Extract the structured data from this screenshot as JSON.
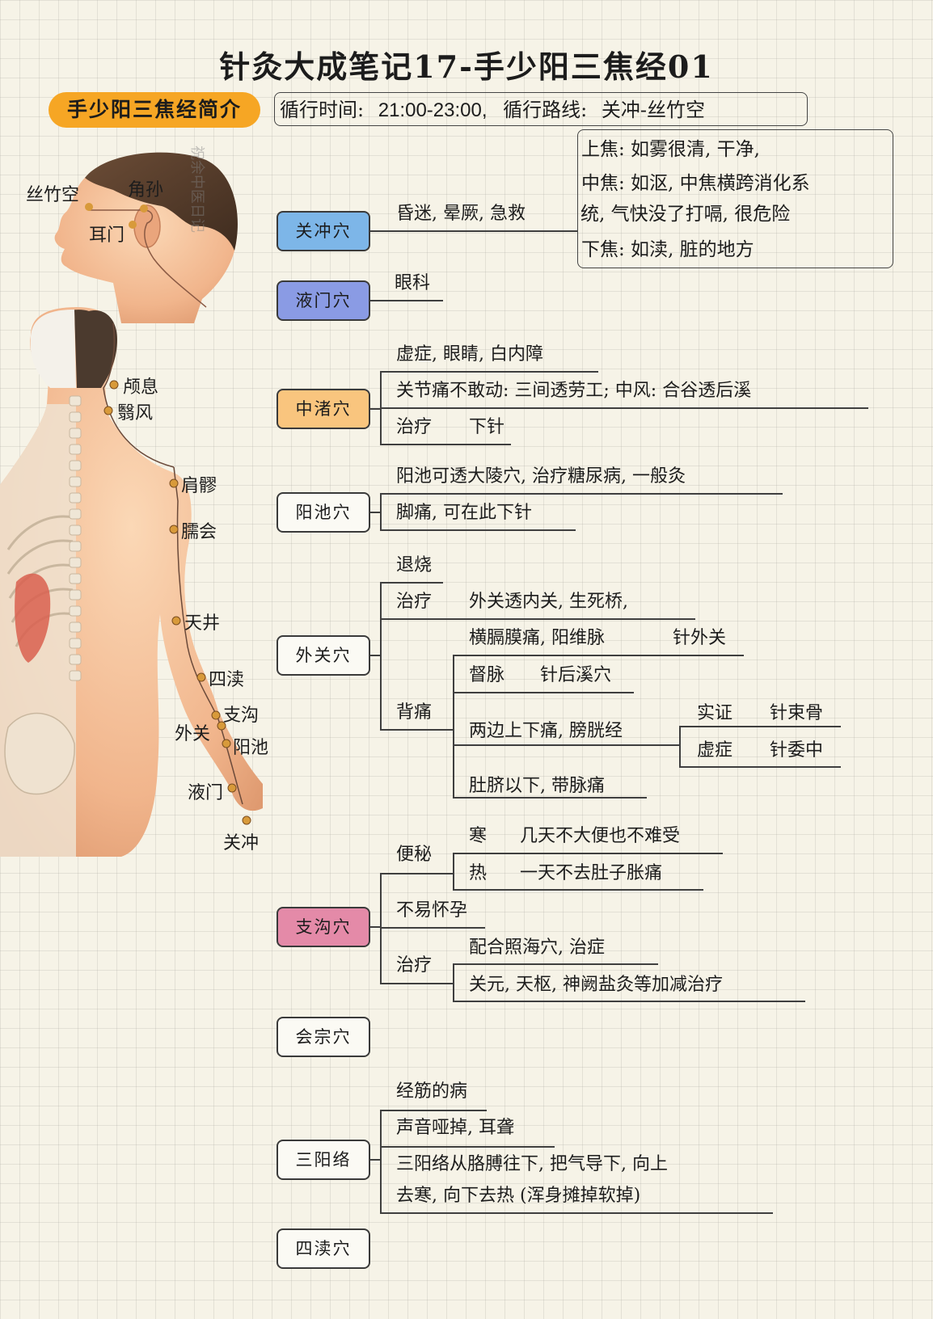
{
  "title": "针灸大成笔记17-手少阳三焦经01",
  "intro": {
    "badge": "手少阳三焦经简介",
    "cycle_time_label": "循行时间:",
    "cycle_time": "21:00-23:00,",
    "route_label": "循行路线:",
    "route": "关冲-丝竹空"
  },
  "san_jiao": {
    "upper": "上焦: 如雾很清, 干净,",
    "middle": "中焦: 如沤, 中焦横跨消化系",
    "middle_cont": "统, 气快没了打嗝, 很危险",
    "lower": "下焦: 如渎, 脏的地方"
  },
  "figure_labels": {
    "sizhukong": "丝竹空",
    "jiaosun": "角孙",
    "ermen": "耳门",
    "luxi": "颅息",
    "yifeng": "翳风",
    "jianliao": "肩髎",
    "naohui": "臑会",
    "tianjing": "天井",
    "sidu": "四渎",
    "zhigou": "支沟",
    "waiguan": "外关",
    "yangchi": "阳池",
    "yemen": "液门",
    "guanchong": "关冲"
  },
  "watermark": "祝余中医日记",
  "nodes": {
    "guanchong": {
      "label": "关冲穴",
      "color": "#7db6e8",
      "items": [
        "昏迷, 晕厥, 急救"
      ]
    },
    "yemen": {
      "label": "液门穴",
      "color": "#8a9be4",
      "items": [
        "眼科"
      ]
    },
    "zhongzhu": {
      "label": "中渚穴",
      "color": "#f9c57e",
      "items": [
        "虚症, 眼睛, 白内障",
        "关节痛不敢动: 三间透劳工; 中风: 合谷透后溪"
      ],
      "zhiliao": "治疗",
      "xiazhen": "下针"
    },
    "yangchi": {
      "label": "阳池穴",
      "items": [
        "阳池可透大陵穴, 治疗糖尿病, 一般灸",
        "脚痛, 可在此下针"
      ]
    },
    "waiguan": {
      "label": "外关穴",
      "tuishao": "退烧",
      "zhiliao": "治疗",
      "zhiliao_text": "外关透内关, 生死桥,",
      "beitong": "背痛",
      "hengge": "横膈膜痛, 阳维脉",
      "hengge_needle": "针外关",
      "dumai": "督脉",
      "dumai_needle": "针后溪穴",
      "liangbian": "两边上下痛, 膀胱经",
      "shizheng": "实证",
      "shizheng_needle": "针束骨",
      "xuzheng": "虚症",
      "xuzheng_needle": "针委中",
      "duqi": "肚脐以下, 带脉痛"
    },
    "zhigou": {
      "label": "支沟穴",
      "color": "#e48aa8",
      "bianmi": "便秘",
      "han": "寒",
      "han_text": "几天不大便也不难受",
      "re": "热",
      "re_text": "一天不去肚子胀痛",
      "buyi": "不易怀孕",
      "zhiliao": "治疗",
      "zhiliao_1": "配合照海穴, 治症",
      "zhiliao_2": "关元, 天枢, 神阙盐灸等加减治疗"
    },
    "huizong": {
      "label": "会宗穴"
    },
    "sanyangluo": {
      "label": "三阳络",
      "items": [
        "经筋的病",
        "声音哑掉, 耳聋",
        "三阳络从胳膊往下, 把气导下, 向上",
        "去寒, 向下去热 (浑身摊掉软掉)"
      ]
    },
    "sidu": {
      "label": "四渎穴"
    }
  }
}
